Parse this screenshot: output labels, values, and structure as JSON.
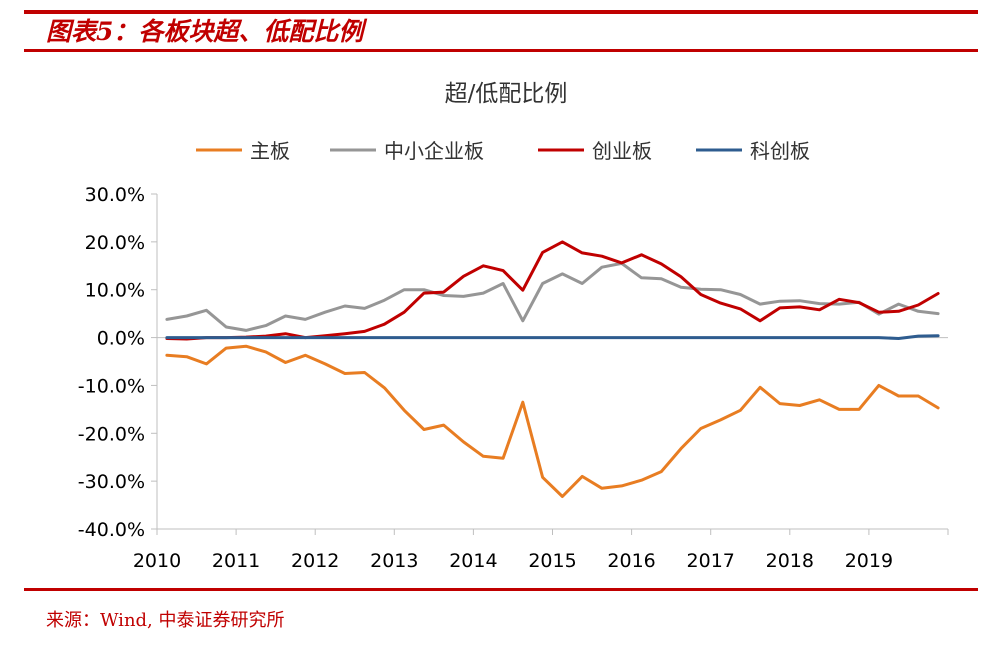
{
  "figure": {
    "title": "图表5：各板块超、低配比例",
    "source": "来源：Wind, 中泰证券研究所"
  },
  "colors": {
    "brand_red": "#c00000",
    "series": [
      "#e87d22",
      "#969696",
      "#c00000",
      "#2e5c8f"
    ]
  },
  "chart_data": {
    "type": "line",
    "title": "超/低配比例",
    "xlabel": "",
    "ylabel": "",
    "ylim": [
      -0.4,
      0.3
    ],
    "y_ticks": [
      0.3,
      0.2,
      0.1,
      0.0,
      -0.1,
      -0.2,
      -0.3,
      -0.4
    ],
    "y_tick_labels": [
      "30.0%",
      "20.0%",
      "10.0%",
      "0.0%",
      "-10.0%",
      "-20.0%",
      "-30.0%",
      "-40.0%"
    ],
    "x_tick_labels": [
      "2010",
      "2011",
      "2012",
      "2013",
      "2014",
      "2015",
      "2016",
      "2017",
      "2018",
      "2019"
    ],
    "legend_position": "top-center",
    "grid": false,
    "x": [
      "2010Q1",
      "2010Q2",
      "2010Q3",
      "2010Q4",
      "2011Q1",
      "2011Q2",
      "2011Q3",
      "2011Q4",
      "2012Q1",
      "2012Q2",
      "2012Q3",
      "2012Q4",
      "2013Q1",
      "2013Q2",
      "2013Q3",
      "2013Q4",
      "2014Q1",
      "2014Q2",
      "2014Q3",
      "2014Q4",
      "2015Q1",
      "2015Q2",
      "2015Q3",
      "2015Q4",
      "2016Q1",
      "2016Q2",
      "2016Q3",
      "2016Q4",
      "2017Q1",
      "2017Q2",
      "2017Q3",
      "2017Q4",
      "2018Q1",
      "2018Q2",
      "2018Q3",
      "2018Q4",
      "2019Q1",
      "2019Q2",
      "2019Q3",
      "2019Q4"
    ],
    "series": [
      {
        "name": "主板",
        "color": "#e87d22",
        "values": [
          -0.037,
          -0.04,
          -0.055,
          -0.022,
          -0.018,
          -0.03,
          -0.052,
          -0.037,
          -0.055,
          -0.075,
          -0.073,
          -0.105,
          -0.152,
          -0.192,
          -0.183,
          -0.218,
          -0.248,
          -0.252,
          -0.135,
          -0.292,
          -0.332,
          -0.29,
          -0.315,
          -0.31,
          -0.298,
          -0.28,
          -0.232,
          -0.19,
          -0.172,
          -0.152,
          -0.104,
          -0.138,
          -0.142,
          -0.13,
          -0.15,
          -0.15,
          -0.1,
          -0.122,
          -0.122,
          -0.147
        ]
      },
      {
        "name": "中小企业板",
        "color": "#969696",
        "values": [
          0.038,
          0.045,
          0.057,
          0.022,
          0.015,
          0.025,
          0.045,
          0.038,
          0.053,
          0.066,
          0.061,
          0.078,
          0.1,
          0.1,
          0.088,
          0.086,
          0.093,
          0.113,
          0.035,
          0.113,
          0.133,
          0.113,
          0.147,
          0.155,
          0.125,
          0.123,
          0.105,
          0.101,
          0.1,
          0.09,
          0.07,
          0.076,
          0.077,
          0.071,
          0.07,
          0.074,
          0.049,
          0.07,
          0.055,
          0.05
        ]
      },
      {
        "name": "创业板",
        "color": "#c00000",
        "values": [
          -0.002,
          -0.003,
          0.0,
          0.0,
          0.001,
          0.003,
          0.008,
          0.0,
          0.004,
          0.008,
          0.013,
          0.028,
          0.053,
          0.093,
          0.095,
          0.128,
          0.15,
          0.14,
          0.099,
          0.178,
          0.2,
          0.177,
          0.17,
          0.156,
          0.173,
          0.154,
          0.127,
          0.09,
          0.072,
          0.06,
          0.035,
          0.062,
          0.064,
          0.058,
          0.08,
          0.073,
          0.053,
          0.055,
          0.068,
          0.092
        ]
      },
      {
        "name": "科创板",
        "color": "#2e5c8f",
        "values": [
          0.0,
          0.0,
          0.0,
          0.0,
          0.0,
          0.0,
          0.0,
          0.0,
          0.0,
          0.0,
          0.0,
          0.0,
          0.0,
          0.0,
          0.0,
          0.0,
          0.0,
          0.0,
          0.0,
          0.0,
          0.0,
          0.0,
          0.0,
          0.0,
          0.0,
          0.0,
          0.0,
          0.0,
          0.0,
          0.0,
          0.0,
          0.0,
          0.0,
          0.0,
          0.0,
          0.0,
          0.0,
          -0.002,
          0.003,
          0.004
        ]
      }
    ]
  }
}
